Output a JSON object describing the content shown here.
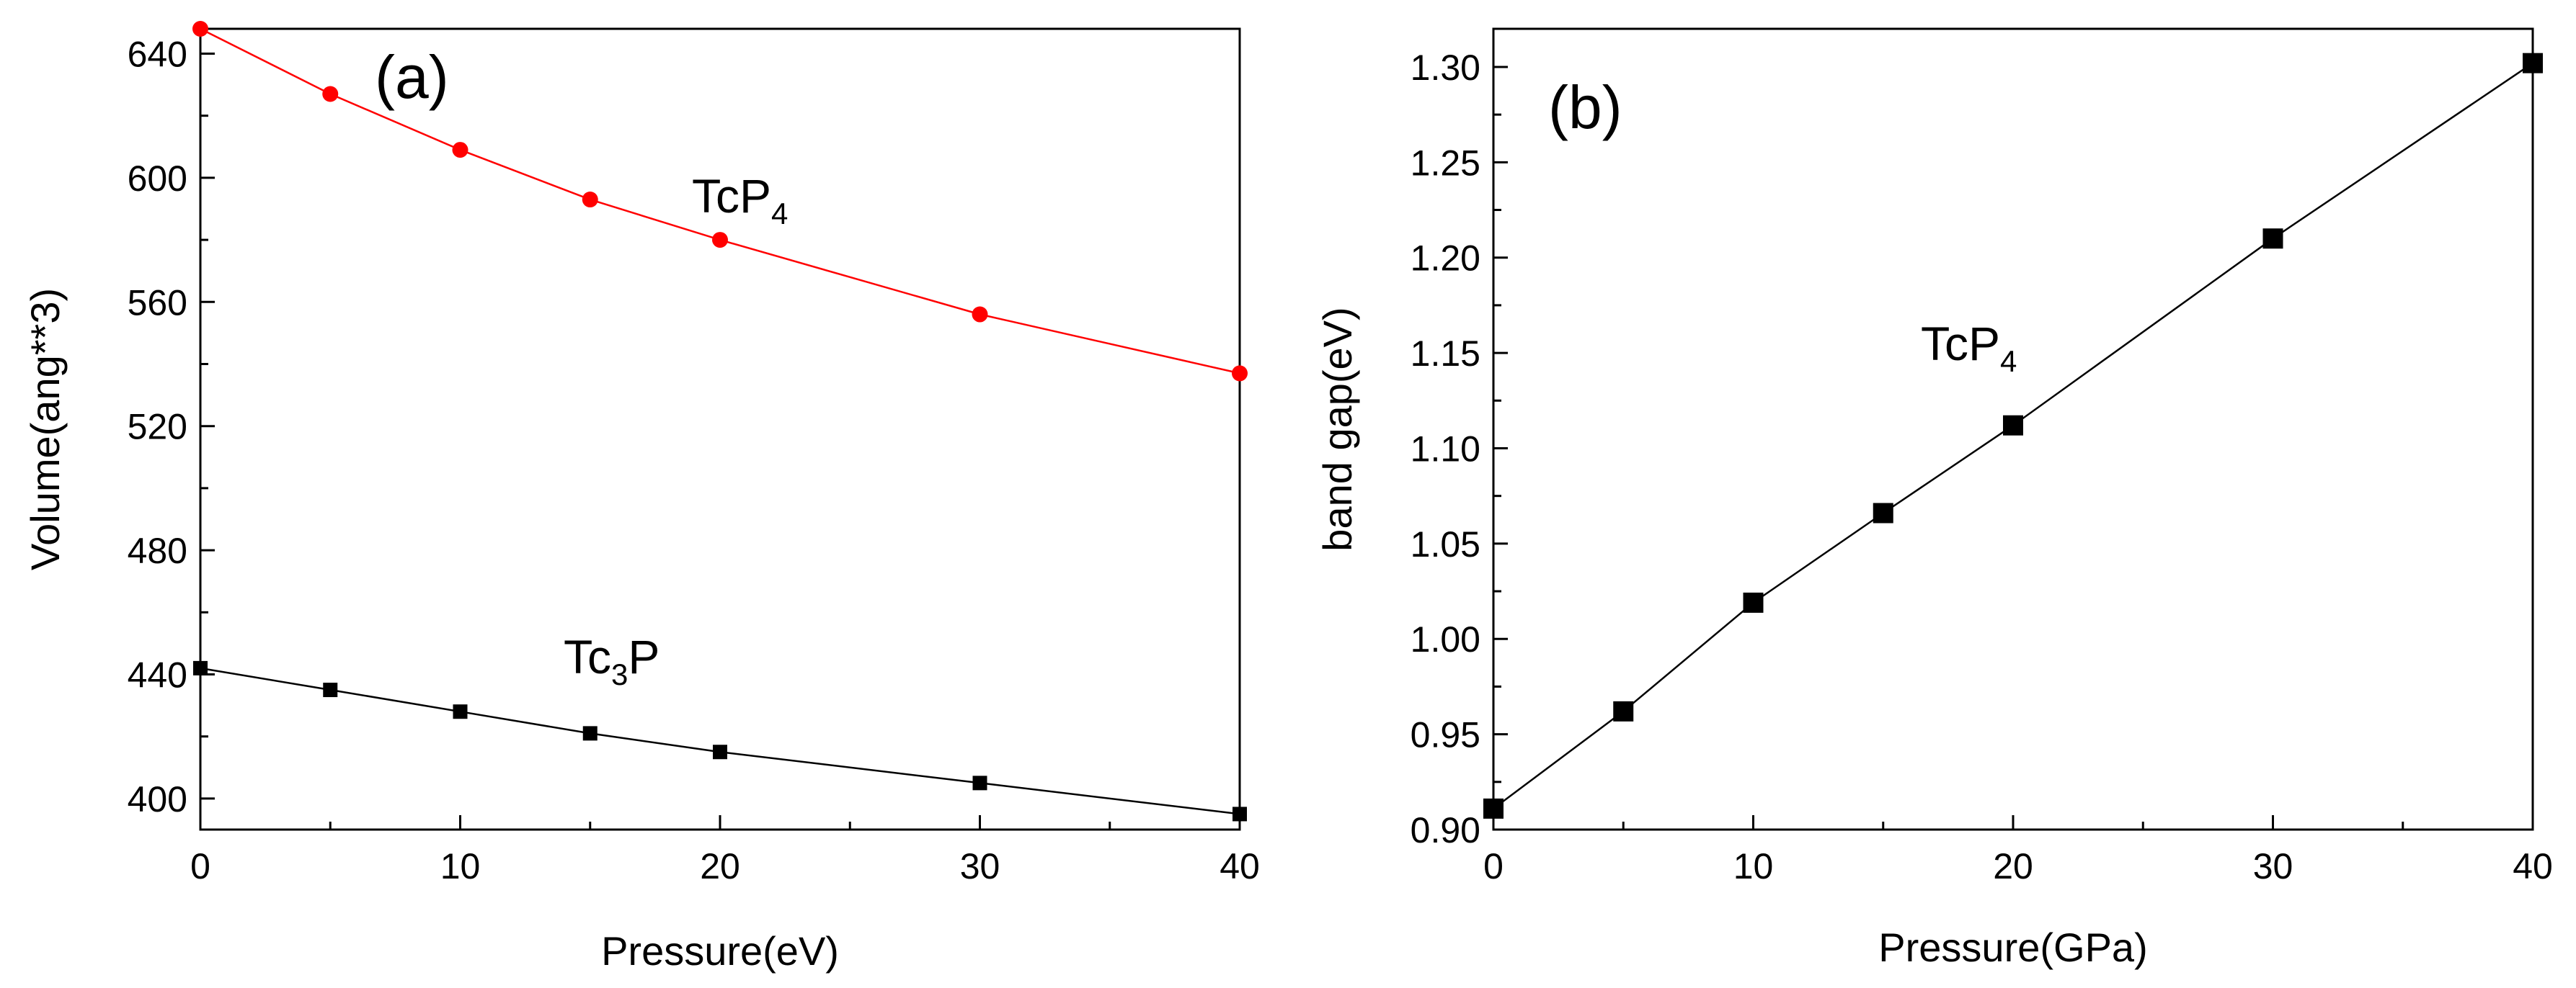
{
  "chart_data": [
    {
      "type": "line",
      "panel_label": "(a)",
      "xlabel": "Pressure(eV)",
      "ylabel": "Volume(ang**3)",
      "xlim": [
        0,
        40
      ],
      "ylim": [
        390,
        648
      ],
      "xticks": [
        0,
        10,
        20,
        30,
        40
      ],
      "xtick_labels": [
        "0",
        "10",
        "20",
        "30",
        "40"
      ],
      "yticks": [
        400,
        440,
        480,
        520,
        560,
        600,
        640
      ],
      "ytick_labels": [
        "400",
        "440",
        "480",
        "520",
        "560",
        "600",
        "640"
      ],
      "grid": false,
      "series": [
        {
          "name": "TcP4",
          "label_main": "TcP",
          "label_sub": "4",
          "label_after": "",
          "color": "#ff0000",
          "marker": "circle",
          "x": [
            0,
            5,
            10,
            15,
            20,
            30,
            40
          ],
          "values": [
            648,
            627,
            609,
            593,
            580,
            556,
            537
          ]
        },
        {
          "name": "Tc3P",
          "label_main": "Tc",
          "label_sub": "3",
          "label_after": "P",
          "color": "#000000",
          "marker": "square",
          "x": [
            0,
            5,
            10,
            15,
            20,
            30,
            40
          ],
          "values": [
            442,
            435,
            428,
            421,
            415,
            405,
            395
          ]
        }
      ]
    },
    {
      "type": "line",
      "panel_label": "(b)",
      "xlabel": "Pressure(GPa)",
      "ylabel": "band gap(eV)",
      "xlim": [
        0,
        40
      ],
      "ylim": [
        0.9,
        1.32
      ],
      "xticks": [
        0,
        10,
        20,
        30,
        40
      ],
      "xtick_labels": [
        "0",
        "10",
        "20",
        "30",
        "40"
      ],
      "yticks": [
        0.9,
        0.95,
        1.0,
        1.05,
        1.1,
        1.15,
        1.2,
        1.25,
        1.3
      ],
      "ytick_labels": [
        "0.90",
        "0.95",
        "1.00",
        "1.05",
        "1.10",
        "1.15",
        "1.20",
        "1.25",
        "1.30"
      ],
      "grid": false,
      "series": [
        {
          "name": "TcP4",
          "label_main": "TcP",
          "label_sub": "4",
          "label_after": "",
          "color": "#000000",
          "marker": "square",
          "x": [
            0,
            5,
            10,
            15,
            20,
            30,
            40
          ],
          "values": [
            0.911,
            0.962,
            1.019,
            1.066,
            1.112,
            1.21,
            1.302
          ]
        }
      ]
    }
  ]
}
